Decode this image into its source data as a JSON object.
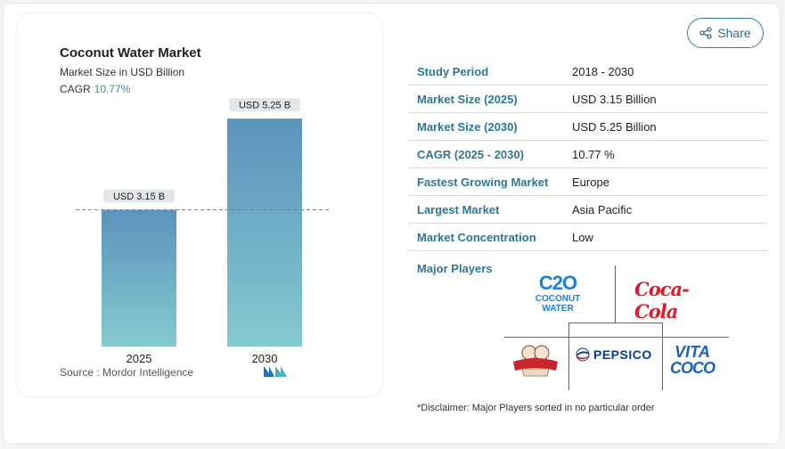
{
  "share": {
    "label": "Share"
  },
  "chart_data": {
    "type": "bar",
    "title": "Coconut Water Market",
    "subtitle": "Market Size in USD Billion",
    "cagr_label": "CAGR",
    "cagr_value": "10.77%",
    "categories": [
      "2025",
      "2030"
    ],
    "values": [
      3.15,
      5.25
    ],
    "data_labels": [
      "USD 3.15 B",
      "USD 5.25 B"
    ],
    "ylim": [
      0,
      5.5
    ],
    "reference_line": 3.15,
    "bar_color_top": "#5b93bd",
    "bar_color_bottom": "#86c9cf",
    "grid": false,
    "source": "Source :  Mordor Intelligence"
  },
  "stats": [
    {
      "label": "Study Period",
      "value": "2018 - 2030"
    },
    {
      "label": "Market Size (2025)",
      "value": "USD 3.15 Billion"
    },
    {
      "label": "Market Size (2030)",
      "value": "USD 5.25 Billion"
    },
    {
      "label": "CAGR (2025 - 2030)",
      "value": "10.77 %"
    },
    {
      "label": "Fastest Growing Market",
      "value": "Europe"
    },
    {
      "label": "Largest Market",
      "value": "Asia Pacific"
    },
    {
      "label": "Market Concentration",
      "value": "Low"
    }
  ],
  "players": {
    "label": "Major Players",
    "logos": {
      "c2o_mark": "C2O",
      "c2o_line1": "COCONUT",
      "c2o_line2": "WATER",
      "coca_cola": "Coca-Cola",
      "pepsico": "PEPSICO",
      "vita_line1": "VITA",
      "vita_line2": "COCO"
    },
    "disclaimer": "*Disclaimer: Major Players sorted in no particular order"
  },
  "colors": {
    "accent": "#2d7893",
    "border": "#d9dde2"
  }
}
